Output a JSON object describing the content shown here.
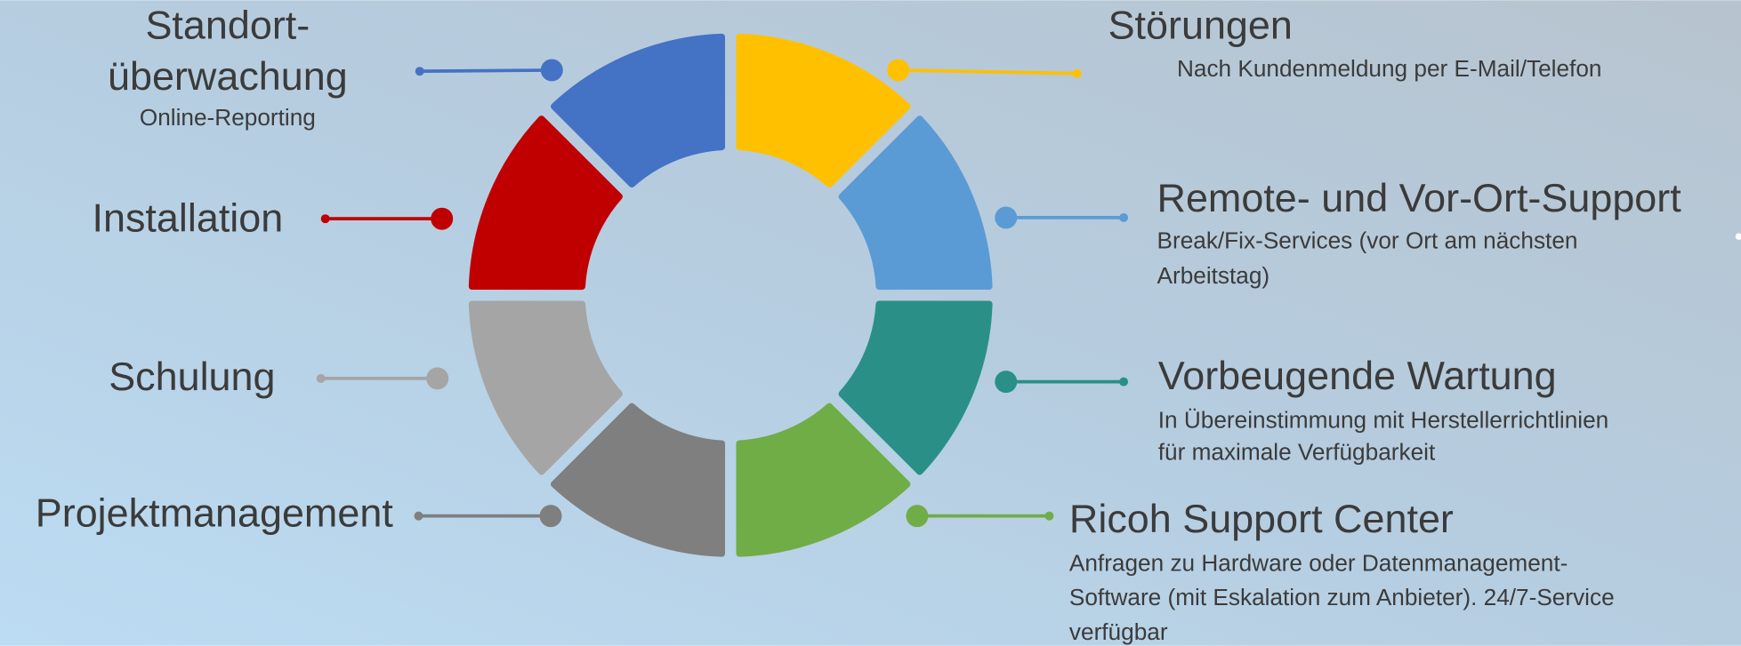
{
  "items": [
    {
      "title": [
        "Standort-",
        "überwachung"
      ],
      "description": [
        "Online-Reporting"
      ]
    },
    {
      "title": [
        "Störungen"
      ],
      "description": [
        "Nach Kundenmeldung per E-Mail/Telefon"
      ]
    },
    {
      "title": [
        "Remote- und Vor-Ort-Support"
      ],
      "description": [
        "Break/Fix-Services (vor Ort am nächsten",
        "Arbeitstag)"
      ]
    },
    {
      "title": [
        "Vorbeugende Wartung"
      ],
      "description": [
        "In Übereinstimmung mit Herstellerrichtlinien",
        "für maximale Verfügbarkeit"
      ]
    },
    {
      "title": [
        "Ricoh Support Center"
      ],
      "description": [
        "Anfragen zu Hardware oder Datenmanagement-",
        "Software (mit Eskalation zum Anbieter). 24/7-Service",
        "verfügbar"
      ]
    },
    {
      "title": [
        "Projektmanagement"
      ],
      "description": []
    },
    {
      "title": [
        "Schulung"
      ],
      "description": []
    },
    {
      "title": [
        "Installation"
      ],
      "description": []
    }
  ]
}
